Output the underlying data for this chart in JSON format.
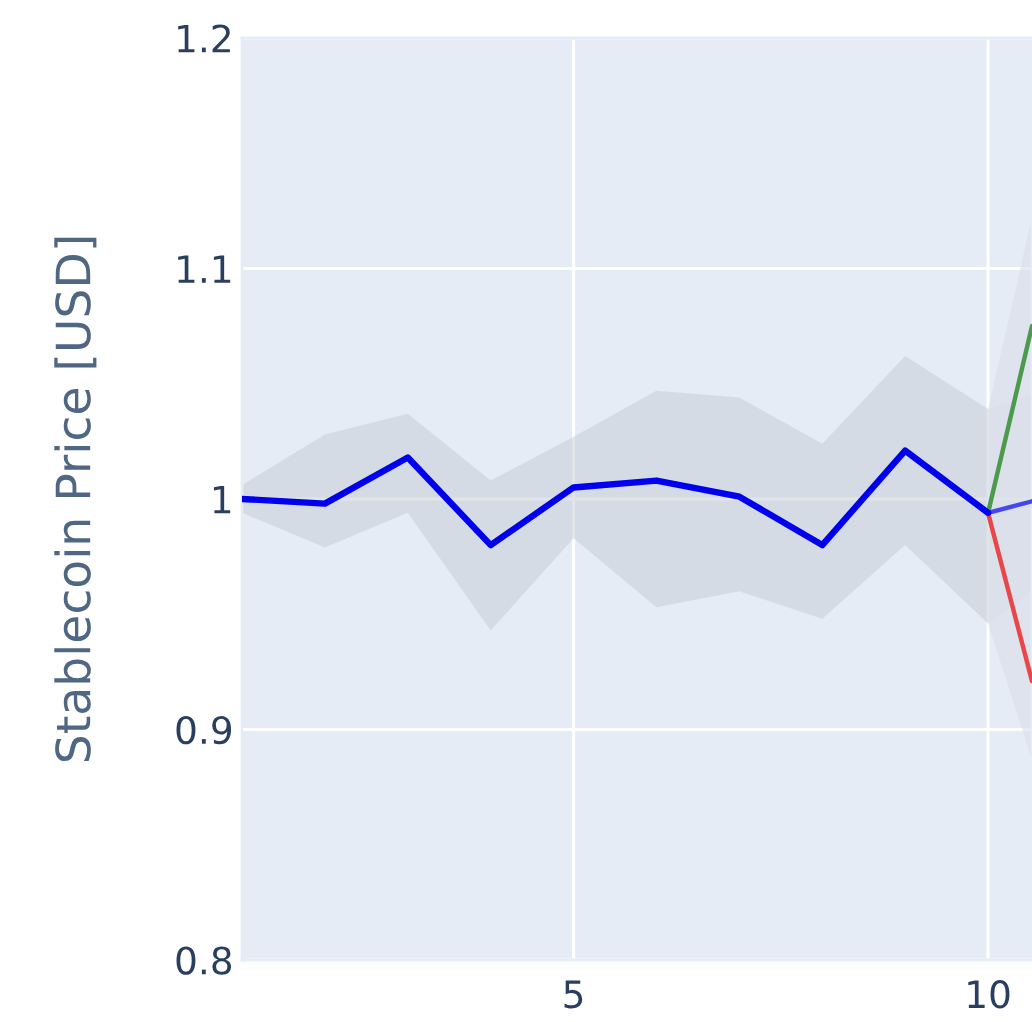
{
  "chart_data": {
    "type": "line",
    "ylabel": "Stablecoin Price [USD]",
    "xlim": [
      1,
      10.53
    ],
    "xticks": [
      5,
      10
    ],
    "ylim": [
      0.8,
      1.2
    ],
    "yticks": [
      0.8,
      0.9,
      1,
      1.1,
      1.2
    ],
    "grid": true,
    "series": [
      {
        "color": "#0000ee",
        "x": [
          1,
          2,
          3,
          4,
          5,
          6,
          7,
          8,
          9,
          10
        ],
        "values": [
          1.0,
          0.998,
          1.018,
          0.98,
          1.005,
          1.008,
          1.001,
          0.98,
          1.021,
          0.994
        ],
        "lower": [
          0.994,
          0.979,
          0.994,
          0.943,
          0.983,
          0.953,
          0.96,
          0.948,
          0.98,
          0.946
        ],
        "upper": [
          1.006,
          1.028,
          1.037,
          1.008,
          1.027,
          1.047,
          1.044,
          1.024,
          1.062,
          1.039
        ]
      },
      {
        "color": "#4c9a4c",
        "x": [
          10,
          10.53
        ],
        "values": [
          0.994,
          1.075
        ],
        "lower": [
          0.946,
          0.96
        ],
        "upper": [
          1.039,
          1.122
        ]
      },
      {
        "color": "#4646f0",
        "x": [
          10,
          10.53
        ],
        "values": [
          0.994,
          0.999
        ]
      },
      {
        "color": "#e8474a",
        "x": [
          10,
          10.53
        ],
        "values": [
          0.994,
          0.921
        ],
        "lower": [
          0.946,
          0.887
        ],
        "upper": [
          1.039,
          1.045
        ]
      }
    ]
  }
}
